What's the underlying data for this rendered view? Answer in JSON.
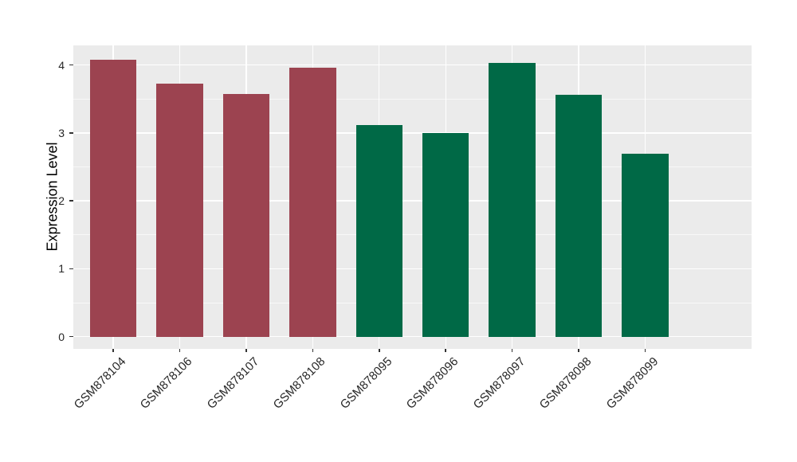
{
  "chart_data": {
    "type": "bar",
    "title": "",
    "xlabel": "",
    "ylabel": "Expression Level",
    "categories": [
      "GSM878104",
      "GSM878106",
      "GSM878107",
      "GSM878108",
      "GSM878095",
      "GSM878096",
      "GSM878097",
      "GSM878098",
      "GSM878099"
    ],
    "values": [
      4.08,
      3.73,
      3.58,
      3.96,
      3.12,
      3.0,
      4.03,
      3.56,
      2.7
    ],
    "groups": [
      "group1",
      "group1",
      "group1",
      "group1",
      "group2",
      "group2",
      "group2",
      "group2",
      "group2"
    ],
    "group_colors": {
      "group1": "#9C4350",
      "group2": "#006946"
    },
    "bar_width": 0.7,
    "ylim": [
      -0.18,
      4.29
    ],
    "yticks": [
      0,
      1,
      2,
      3,
      4
    ],
    "ytick_labels": [
      "0",
      "1",
      "2",
      "3",
      "4"
    ],
    "minor_yticks": [
      0.5,
      1.5,
      2.5,
      3.5
    ],
    "grid": "on",
    "legend_position": "none",
    "panel_background": "#EBEBEB",
    "grid_color": "#FFFFFF",
    "axis_text_color": "#262626",
    "tick_mark_color": "#333333"
  }
}
